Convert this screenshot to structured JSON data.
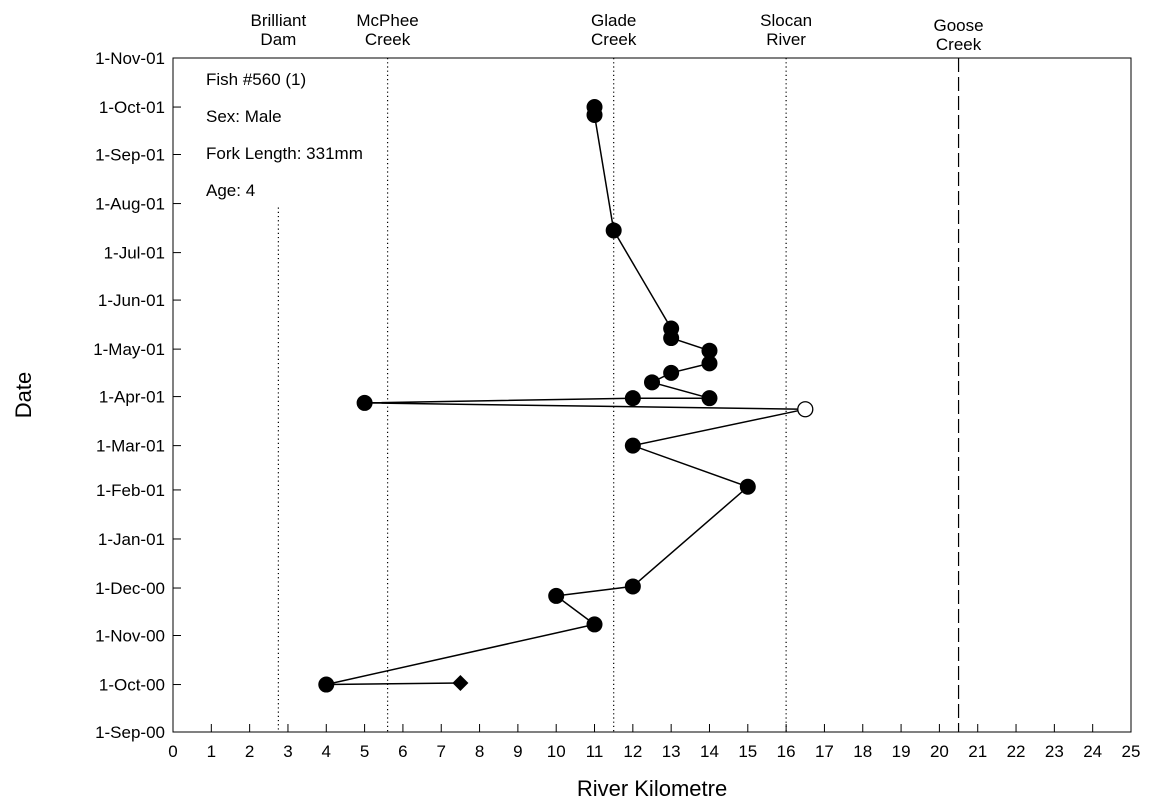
{
  "chart_data": {
    "type": "scatter",
    "xlabel": "River Kilometre",
    "ylabel": "Date",
    "xlim": [
      0,
      25
    ],
    "xticks": [
      0,
      1,
      2,
      3,
      4,
      5,
      6,
      7,
      8,
      9,
      10,
      11,
      12,
      13,
      14,
      15,
      16,
      17,
      18,
      19,
      20,
      21,
      22,
      23,
      24,
      25
    ],
    "ylim": [
      "1-Sep-00",
      "1-Nov-01"
    ],
    "yticks": [
      "1-Sep-00",
      "1-Oct-00",
      "1-Nov-00",
      "1-Dec-00",
      "1-Jan-01",
      "1-Feb-01",
      "1-Mar-01",
      "1-Apr-01",
      "1-May-01",
      "1-Jun-01",
      "1-Jul-01",
      "1-Aug-01",
      "1-Sep-01",
      "1-Oct-01",
      "1-Nov-01"
    ],
    "annotations": [
      "Fish #560 (1)",
      "Sex: Male",
      "Fork Length: 331mm",
      "Age: 4"
    ],
    "landmarks": [
      {
        "label_lines": [
          "Brilliant",
          "Dam"
        ],
        "x": 2.75,
        "style": "dotted",
        "from_date": "1-Aug-01"
      },
      {
        "label_lines": [
          "McPhee",
          "Creek"
        ],
        "x": 5.6,
        "style": "dotted"
      },
      {
        "label_lines": [
          "Glade",
          "Creek"
        ],
        "x": 11.5,
        "style": "dotted"
      },
      {
        "label_lines": [
          "Slocan",
          "River"
        ],
        "x": 16.0,
        "style": "dotted"
      },
      {
        "label_lines": [
          "Goose",
          "Creek"
        ],
        "x": 20.5,
        "style": "dashed"
      }
    ],
    "series": [
      {
        "marker": "track",
        "points": [
          {
            "x": 7.5,
            "date": "2000-10-02",
            "marker": "diamond"
          },
          {
            "x": 4.0,
            "date": "2000-10-01",
            "marker": "filled-circle"
          },
          {
            "x": 11.0,
            "date": "2000-11-08",
            "marker": "filled-circle"
          },
          {
            "x": 10.0,
            "date": "2000-11-26",
            "marker": "filled-circle"
          },
          {
            "x": 12.0,
            "date": "2000-12-02",
            "marker": "filled-circle"
          },
          {
            "x": 15.0,
            "date": "2001-02-03",
            "marker": "filled-circle"
          },
          {
            "x": 12.0,
            "date": "2001-03-01",
            "marker": "filled-circle"
          },
          {
            "x": 16.5,
            "date": "2001-03-24",
            "marker": "open-circle"
          },
          {
            "x": 5.0,
            "date": "2001-03-28",
            "marker": "filled-circle"
          },
          {
            "x": 12.0,
            "date": "2001-03-31",
            "marker": "filled-circle"
          },
          {
            "x": 14.0,
            "date": "2001-03-31",
            "marker": "filled-circle"
          },
          {
            "x": 12.5,
            "date": "2001-04-10",
            "marker": "filled-circle"
          },
          {
            "x": 13.0,
            "date": "2001-04-16",
            "marker": "filled-circle"
          },
          {
            "x": 14.0,
            "date": "2001-04-22",
            "marker": "filled-circle"
          },
          {
            "x": 14.0,
            "date": "2001-04-30",
            "marker": "filled-circle"
          },
          {
            "x": 13.0,
            "date": "2001-05-08",
            "marker": "filled-circle"
          },
          {
            "x": 13.0,
            "date": "2001-05-14",
            "marker": "filled-circle"
          },
          {
            "x": 11.5,
            "date": "2001-07-15",
            "marker": "filled-circle"
          },
          {
            "x": 11.0,
            "date": "2001-09-26",
            "marker": "filled-circle"
          },
          {
            "x": 11.0,
            "date": "2001-10-01",
            "marker": "filled-circle"
          }
        ]
      }
    ]
  }
}
